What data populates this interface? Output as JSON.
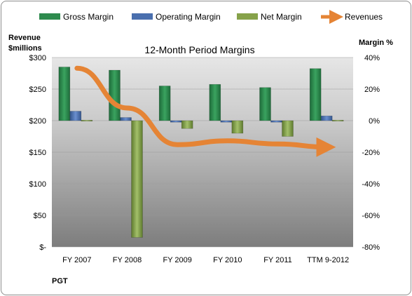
{
  "chart_data": {
    "type": "bar",
    "title": "12-Month Period Margins",
    "categories": [
      "FY 2007",
      "FY 2008",
      "FY 2009",
      "FY 2010",
      "FY 2011",
      "TTM 9-2012"
    ],
    "series": [
      {
        "name": "Gross Margin",
        "axis": "right",
        "values": [
          34,
          32,
          22,
          23,
          21,
          33
        ],
        "color": "#2e8b4e"
      },
      {
        "name": "Operating Margin",
        "axis": "right",
        "values": [
          6,
          2,
          -1,
          -1,
          -1,
          3
        ],
        "color": "#4a6fae"
      },
      {
        "name": "Net Margin",
        "axis": "right",
        "values": [
          0,
          -74,
          -5,
          -8,
          -10,
          0
        ],
        "color": "#86a24a"
      },
      {
        "name": "Revenues",
        "axis": "left",
        "type": "line",
        "values": [
          283,
          220,
          162,
          168,
          163,
          158
        ],
        "color": "#e58435"
      }
    ],
    "y_left": {
      "label_line1": "Revenue",
      "label_line2": "$millions",
      "ticks": [
        "$300",
        "$250",
        "$200",
        "$150",
        "$100",
        "$50",
        "$-"
      ],
      "range": [
        0,
        300
      ]
    },
    "y_right": {
      "label": "Margin %",
      "ticks": [
        "40%",
        "20%",
        "0%",
        "-20%",
        "-40%",
        "-60%",
        "-80%"
      ],
      "range": [
        -80,
        40
      ]
    },
    "legend": [
      "Gross Margin",
      "Operating Margin",
      "Net Margin",
      "Revenues"
    ],
    "legend_position": "top",
    "ticker": "PGT",
    "grid": true
  }
}
